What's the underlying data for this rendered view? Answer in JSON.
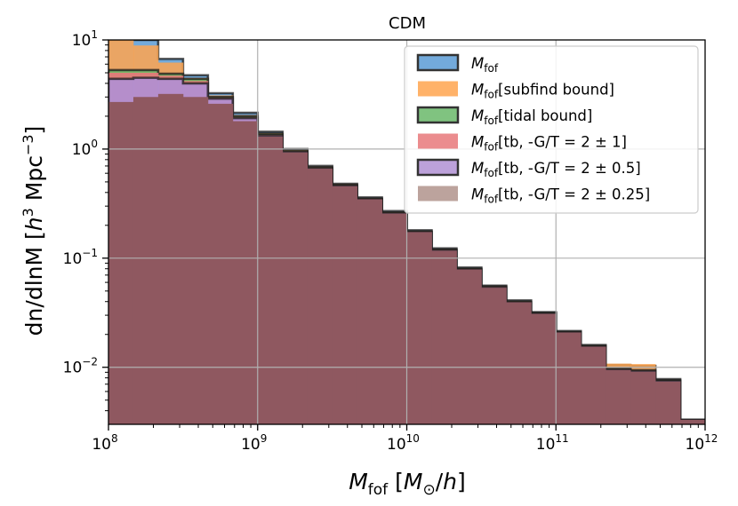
{
  "chart_data": {
    "type": "histogram",
    "title": "CDM",
    "xlabel": "M_fof [M_⊙/h]",
    "ylabel": "dn/dlnM [h^3 Mpc^-3]",
    "xscale": "log",
    "yscale": "log",
    "xlim": [
      100000000.0,
      1000000000000.0
    ],
    "ylim": [
      0.003,
      10
    ],
    "grid": true,
    "legend_position": "top-right",
    "x_ticks": [
      {
        "base": "10",
        "exp": "8"
      },
      {
        "base": "10",
        "exp": "9"
      },
      {
        "base": "10",
        "exp": "10"
      },
      {
        "base": "10",
        "exp": "11"
      },
      {
        "base": "10",
        "exp": "12"
      }
    ],
    "y_ticks": [
      {
        "value": 10,
        "label": "10",
        "base": "10",
        "exp": "1"
      },
      {
        "value": 1,
        "label": "10",
        "base": "10",
        "exp": "0"
      },
      {
        "value": 0.1,
        "label": "10",
        "base": "10",
        "exp": "−1"
      },
      {
        "value": 0.01,
        "label": "10",
        "base": "10",
        "exp": "−2"
      }
    ],
    "bin_edges_log10": [
      8.0,
      8.1666,
      8.3333,
      8.5,
      8.6666,
      8.8333,
      9.0,
      9.1666,
      9.3333,
      9.5,
      9.6666,
      9.8333,
      10.0,
      10.1666,
      10.3333,
      10.5,
      10.6666,
      10.8333,
      11.0,
      11.1666,
      11.3333,
      11.5,
      11.6666,
      11.8333,
      12.0
    ],
    "series": [
      {
        "name": "M_fof",
        "name_main": "M",
        "name_sub": "fof",
        "name_suffix": "",
        "color": "#5b9bd5",
        "opacity": 0.85,
        "edge": true,
        "values": [
          10.2,
          10.2,
          6.7,
          4.75,
          3.25,
          2.15,
          1.44,
          1.0,
          0.7,
          0.48,
          0.36,
          0.27,
          0.18,
          0.123,
          0.082,
          0.056,
          0.041,
          0.032,
          0.0215,
          0.016,
          0.0105,
          0.0103,
          0.0078,
          0.0033
        ]
      },
      {
        "name": "M_fof[subfind bound]",
        "name_main": "M",
        "name_sub": "fof",
        "name_suffix": "[subfind bound]",
        "color": "#ffa54f",
        "opacity": 0.85,
        "edge": false,
        "values": [
          10.0,
          8.9,
          6.2,
          4.5,
          3.1,
          2.05,
          1.4,
          0.98,
          0.69,
          0.475,
          0.355,
          0.265,
          0.178,
          0.121,
          0.081,
          0.0555,
          0.0405,
          0.0318,
          0.0213,
          0.0159,
          0.0108,
          0.0107,
          0.0077,
          0.0033
        ]
      },
      {
        "name": "M_fof[tidal bound]",
        "name_main": "M",
        "name_sub": "fof",
        "name_suffix": "[tidal bound]",
        "color": "#6ab96a",
        "opacity": 0.85,
        "edge": true,
        "values": [
          5.3,
          5.3,
          4.9,
          4.4,
          3.0,
          2.0,
          1.38,
          0.97,
          0.68,
          0.47,
          0.352,
          0.262,
          0.176,
          0.12,
          0.08,
          0.055,
          0.04,
          0.0315,
          0.0211,
          0.0157,
          0.0097,
          0.0094,
          0.0076,
          0.0033
        ]
      },
      {
        "name": "M_fof[tb, -G/T = 2 ± 1]",
        "name_main": "M",
        "name_sub": "fof",
        "name_suffix": "[tb, -G/T = 2 ± 1]",
        "color": "#e8787a",
        "opacity": 0.9,
        "edge": false,
        "values": [
          5.0,
          5.0,
          4.7,
          4.2,
          2.95,
          1.95,
          1.35,
          0.95,
          0.67,
          0.465,
          0.35,
          0.26,
          0.175,
          0.119,
          0.0795,
          0.0545,
          0.0398,
          0.0312,
          0.021,
          0.0156,
          0.0096,
          0.0093,
          0.0075,
          0.0033
        ]
      },
      {
        "name": "M_fof[tb, -G/T = 2 ± 0.5]",
        "name_main": "M",
        "name_sub": "fof",
        "name_suffix": "[tb, -G/T = 2 ± 0.5]",
        "color": "#b090d4",
        "opacity": 0.9,
        "edge": true,
        "values": [
          4.4,
          4.5,
          4.4,
          4.0,
          2.9,
          1.92,
          1.33,
          0.94,
          0.665,
          0.46,
          0.347,
          0.258,
          0.174,
          0.118,
          0.079,
          0.054,
          0.0395,
          0.031,
          0.0209,
          0.0155,
          0.0095,
          0.0092,
          0.0075,
          0.0033
        ]
      },
      {
        "name": "M_fof[tb, -G/T = 2 ± 0.25]",
        "name_main": "M",
        "name_sub": "fof",
        "name_suffix": "[tb, -G/T = 2 ± 0.25]",
        "color": "#8f5860",
        "opacity": 1.0,
        "edge": false,
        "values": [
          2.7,
          3.0,
          3.2,
          3.0,
          2.6,
          1.8,
          1.3,
          0.93,
          0.66,
          0.455,
          0.345,
          0.256,
          0.173,
          0.117,
          0.0785,
          0.0535,
          0.0393,
          0.0308,
          0.0208,
          0.0154,
          0.0094,
          0.0091,
          0.0074,
          0.0033
        ]
      }
    ],
    "legend_colors": [
      "#5b9bd5",
      "#ffa54f",
      "#6ab96a",
      "#e8787a",
      "#b090d4",
      "#b0938c"
    ]
  }
}
